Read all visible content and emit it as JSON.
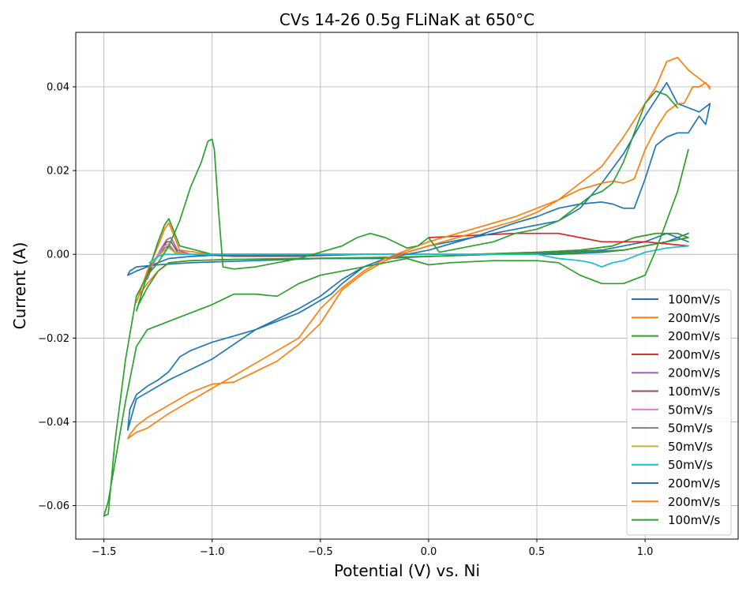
{
  "chart_data": {
    "type": "line",
    "title": "CVs 14-26 0.5g FLiNaK at 650°C",
    "xlabel": "Potential (V) vs. Ni",
    "ylabel": "Current (A)",
    "xlim": [
      -1.63,
      1.43
    ],
    "ylim": [
      -0.068,
      0.053
    ],
    "xticks": [
      -1.5,
      -1.0,
      -0.5,
      0.0,
      0.5,
      1.0
    ],
    "xtick_labels": [
      "−1.5",
      "−1.0",
      "−0.5",
      "0.0",
      "0.5",
      "1.0"
    ],
    "yticks": [
      -0.06,
      -0.04,
      -0.02,
      0.0,
      0.02,
      0.04
    ],
    "ytick_labels": [
      "−0.06",
      "−0.04",
      "−0.02",
      "0.00",
      "0.02",
      "0.04"
    ],
    "grid": true,
    "legend_position": "lower-right",
    "series": [
      {
        "name": "100mV/s",
        "color": "#1f77b4",
        "x": [
          1.2,
          1.15,
          1.1,
          1.0,
          0.9,
          0.8,
          0.6,
          0.3,
          0.0,
          -0.2,
          -0.5,
          -0.8,
          -1.1,
          -1.25,
          -1.35,
          -1.38,
          -1.39,
          -1.35,
          -1.3,
          -1.25,
          -1.2,
          -1.1,
          -0.9,
          -0.6,
          -0.4,
          -0.2,
          0.0,
          0.3,
          0.6,
          0.8,
          0.9,
          1.0,
          1.05,
          1.1,
          1.15,
          1.2
        ],
        "y": [
          0.005,
          0.004,
          0.003,
          0.002,
          0.001,
          0.0005,
          0.0,
          0.0,
          -0.0005,
          -0.001,
          -0.001,
          -0.0015,
          -0.002,
          -0.0025,
          -0.003,
          -0.004,
          -0.005,
          -0.004,
          -0.003,
          -0.002,
          -0.001,
          -0.0005,
          0.0,
          0.0,
          0.0,
          0.0,
          0.0,
          0.0,
          0.0005,
          0.001,
          0.002,
          0.003,
          0.004,
          0.005,
          0.004,
          0.003
        ]
      },
      {
        "name": "200mV/s",
        "color": "#ff7f0e",
        "x": [
          1.2,
          1.1,
          1.0,
          0.9,
          0.7,
          0.5,
          0.3,
          0.0,
          -0.3,
          -0.6,
          -0.9,
          -1.1,
          -1.2,
          -1.25,
          -1.3,
          -1.34,
          -1.35,
          -1.3,
          -1.25,
          -1.22,
          -1.2,
          -1.15,
          -1.0,
          -0.7,
          -0.4,
          -0.1,
          0.2,
          0.5,
          0.7,
          0.85,
          0.95,
          1.05,
          1.15,
          1.2
        ],
        "y": [
          0.004,
          0.003,
          0.002,
          0.001,
          0.0005,
          0.0,
          0.0,
          -0.0005,
          -0.0008,
          -0.001,
          -0.0012,
          -0.0015,
          -0.002,
          -0.004,
          -0.007,
          -0.01,
          -0.0115,
          -0.004,
          0.002,
          0.006,
          0.0075,
          0.001,
          0.0,
          0.0,
          0.0,
          0.0,
          0.0,
          0.0005,
          0.001,
          0.002,
          0.004,
          0.005,
          0.005,
          0.004
        ]
      },
      {
        "name": "200mV/s",
        "color": "#2ca02c",
        "x": [
          1.2,
          1.1,
          1.0,
          0.9,
          0.7,
          0.5,
          0.3,
          0.0,
          -0.3,
          -0.6,
          -0.9,
          -1.1,
          -1.2,
          -1.25,
          -1.3,
          -1.34,
          -1.35,
          -1.3,
          -1.25,
          -1.22,
          -1.2,
          -1.15,
          -1.0,
          -0.7,
          -0.4,
          -0.1,
          0.2,
          0.5,
          0.7,
          0.85,
          0.95,
          1.05,
          1.15,
          1.2
        ],
        "y": [
          0.004,
          0.003,
          0.002,
          0.001,
          0.0005,
          0.0,
          0.0,
          -0.0005,
          -0.0008,
          -0.001,
          -0.0012,
          -0.0015,
          -0.002,
          -0.004,
          -0.008,
          -0.012,
          -0.0135,
          -0.005,
          0.003,
          0.007,
          0.0085,
          0.002,
          0.0,
          0.0,
          0.0,
          0.0,
          0.0,
          0.0005,
          0.001,
          0.002,
          0.004,
          0.005,
          0.005,
          0.004
        ]
      },
      {
        "name": "200mV/s",
        "color": "#d62728",
        "x": [
          0.0,
          0.2,
          0.4,
          0.6,
          0.7,
          0.8,
          0.9,
          1.0,
          1.1,
          1.2
        ],
        "y": [
          0.004,
          0.0045,
          0.005,
          0.005,
          0.004,
          0.003,
          0.003,
          0.003,
          0.0025,
          0.002
        ]
      },
      {
        "name": "200mV/s",
        "color": "#9467bd",
        "x": [
          -1.3,
          -1.27,
          -1.24,
          -1.21,
          -1.19,
          -1.16,
          -1.1,
          -0.9,
          -0.6,
          -0.3,
          0.0
        ],
        "y": [
          -0.006,
          -0.002,
          0.001,
          0.0035,
          0.004,
          0.001,
          0.0,
          -0.0005,
          -0.0005,
          0.0,
          0.0
        ]
      },
      {
        "name": "100mV/s",
        "color": "#8c564b",
        "x": [
          -1.3,
          -1.27,
          -1.24,
          -1.21,
          -1.19,
          -1.16,
          -1.1,
          -0.9,
          -0.6,
          -0.3,
          0.0
        ],
        "y": [
          -0.005,
          -0.002,
          0.0005,
          0.003,
          0.003,
          0.0005,
          0.0,
          -0.0003,
          -0.0003,
          0.0,
          0.0
        ]
      },
      {
        "name": "50mV/s",
        "color": "#e377c2",
        "x": [
          -1.28,
          -1.25,
          -1.22,
          -1.2,
          -1.17,
          -1.1,
          -0.8,
          -0.4,
          0.0
        ],
        "y": [
          -0.003,
          0.0,
          0.002,
          0.0025,
          0.0005,
          0.0,
          0.0,
          0.0,
          0.0
        ]
      },
      {
        "name": "50mV/s",
        "color": "#7f7f7f",
        "x": [
          -1.28,
          -1.25,
          -1.22,
          -1.2,
          -1.17,
          -1.1,
          -0.8,
          -0.4,
          0.0
        ],
        "y": [
          -0.0025,
          -0.0005,
          0.0015,
          0.002,
          0.0003,
          0.0,
          0.0,
          0.0,
          0.0
        ]
      },
      {
        "name": "50mV/s",
        "color": "#bcbd22",
        "x": [
          -1.28,
          -1.25,
          -1.22,
          -1.2,
          -1.17,
          -1.1,
          -0.8,
          -0.4,
          0.0
        ],
        "y": [
          -0.002,
          -0.0005,
          0.001,
          0.0015,
          0.0003,
          0.0,
          0.0,
          0.0,
          0.0
        ]
      },
      {
        "name": "50mV/s",
        "color": "#17becf",
        "x": [
          -1.29,
          -1.25,
          -1.22,
          -1.2,
          -1.15,
          -1.0,
          -0.5,
          0.0,
          0.3,
          0.5,
          0.6,
          0.7,
          0.75,
          0.8,
          0.85,
          0.9,
          1.0,
          1.1,
          1.2
        ],
        "y": [
          -0.002,
          -0.0005,
          0.0,
          0.0,
          0.0,
          0.0,
          0.0,
          0.0,
          0.0,
          0.0,
          -0.001,
          -0.0015,
          -0.002,
          -0.003,
          -0.002,
          -0.0015,
          0.0005,
          0.0015,
          0.002
        ]
      },
      {
        "name": "200mV/s",
        "color": "#1f77b4",
        "x": [
          1.3,
          1.28,
          1.25,
          1.2,
          1.15,
          1.1,
          1.05,
          1.0,
          0.95,
          0.9,
          0.85,
          0.8,
          0.7,
          0.6,
          0.5,
          0.4,
          0.2,
          0.0,
          -0.1,
          -0.2,
          -0.3,
          -0.4,
          -0.45,
          -0.5,
          -0.6,
          -0.7,
          -0.8,
          -0.9,
          -1.0,
          -1.1,
          -1.15,
          -1.2,
          -1.25,
          -1.3,
          -1.35,
          -1.38,
          -1.39,
          -1.35,
          -1.3,
          -1.2,
          -1.0,
          -0.8,
          -0.6,
          -0.5,
          -0.4,
          -0.3,
          -0.2,
          0.0,
          0.2,
          0.4,
          0.6,
          0.7,
          0.8,
          0.9,
          1.0,
          1.05,
          1.1,
          1.15,
          1.2,
          1.25,
          1.3
        ],
        "y": [
          0.036,
          0.031,
          0.033,
          0.029,
          0.029,
          0.028,
          0.026,
          0.018,
          0.011,
          0.011,
          0.012,
          0.0125,
          0.012,
          0.011,
          0.009,
          0.0075,
          0.004,
          0.001,
          0.0,
          -0.001,
          -0.003,
          -0.007,
          -0.0095,
          -0.011,
          -0.014,
          -0.016,
          -0.018,
          -0.0195,
          -0.021,
          -0.023,
          -0.0245,
          -0.028,
          -0.03,
          -0.0315,
          -0.0335,
          -0.037,
          -0.042,
          -0.0345,
          -0.033,
          -0.03,
          -0.025,
          -0.018,
          -0.013,
          -0.01,
          -0.006,
          -0.003,
          -0.001,
          0.002,
          0.004,
          0.006,
          0.008,
          0.011,
          0.017,
          0.024,
          0.033,
          0.037,
          0.041,
          0.036,
          0.035,
          0.034,
          0.036
        ]
      },
      {
        "name": "200mV/s",
        "color": "#ff7f0e",
        "x": [
          1.3,
          1.28,
          1.25,
          1.22,
          1.2,
          1.18,
          1.15,
          1.1,
          1.05,
          1.0,
          0.95,
          0.9,
          0.85,
          0.8,
          0.7,
          0.6,
          0.5,
          0.4,
          0.2,
          0.0,
          -0.1,
          -0.2,
          -0.3,
          -0.4,
          -0.5,
          -0.6,
          -0.7,
          -0.8,
          -0.9,
          -1.0,
          -1.1,
          -1.2,
          -1.3,
          -1.35,
          -1.38,
          -1.39,
          -1.35,
          -1.3,
          -1.2,
          -1.0,
          -0.8,
          -0.6,
          -0.5,
          -0.4,
          -0.3,
          -0.2,
          0.0,
          0.2,
          0.4,
          0.6,
          0.7,
          0.8,
          0.9,
          1.0,
          1.05,
          1.1,
          1.15,
          1.2,
          1.25,
          1.3
        ],
        "y": [
          0.0395,
          0.041,
          0.04,
          0.04,
          0.038,
          0.036,
          0.036,
          0.034,
          0.03,
          0.025,
          0.018,
          0.017,
          0.0175,
          0.017,
          0.0155,
          0.013,
          0.01,
          0.008,
          0.005,
          0.002,
          0.0005,
          -0.0015,
          -0.0045,
          -0.0085,
          -0.0165,
          -0.0215,
          -0.0255,
          -0.028,
          -0.0305,
          -0.031,
          -0.033,
          -0.036,
          -0.039,
          -0.041,
          -0.043,
          -0.044,
          -0.0425,
          -0.0415,
          -0.038,
          -0.032,
          -0.026,
          -0.02,
          -0.013,
          -0.008,
          -0.004,
          -0.001,
          0.003,
          0.006,
          0.009,
          0.013,
          0.017,
          0.021,
          0.028,
          0.036,
          0.04,
          0.046,
          0.047,
          0.044,
          0.042,
          0.04
        ]
      },
      {
        "name": "100mV/s",
        "color": "#2ca02c",
        "x": [
          1.15,
          1.1,
          1.05,
          1.0,
          0.95,
          0.9,
          0.85,
          0.8,
          0.75,
          0.7,
          0.6,
          0.5,
          0.4,
          0.3,
          0.2,
          0.1,
          0.05,
          0.0,
          -0.05,
          -0.1,
          -0.2,
          -0.27,
          -0.33,
          -0.4,
          -0.5,
          -0.6,
          -0.7,
          -0.8,
          -0.9,
          -0.95,
          -0.97,
          -0.99,
          -1.0,
          -1.02,
          -1.05,
          -1.1,
          -1.15,
          -1.2,
          -1.25,
          -1.3,
          -1.35,
          -1.4,
          -1.45,
          -1.48,
          -1.5,
          -1.48,
          -1.45,
          -1.4,
          -1.35,
          -1.3,
          -1.2,
          -1.1,
          -1.0,
          -0.9,
          -0.8,
          -0.7,
          -0.6,
          -0.5,
          -0.4,
          -0.3,
          -0.2,
          -0.1,
          0.0,
          0.1,
          0.3,
          0.5,
          0.6,
          0.7,
          0.8,
          0.9,
          1.0,
          1.05,
          1.1,
          1.15,
          1.2
        ],
        "y": [
          0.035,
          0.038,
          0.039,
          0.036,
          0.029,
          0.022,
          0.017,
          0.015,
          0.014,
          0.012,
          0.008,
          0.006,
          0.005,
          0.003,
          0.002,
          0.001,
          0.0005,
          0.004,
          0.002,
          0.0015,
          0.004,
          0.005,
          0.004,
          0.002,
          0.0005,
          -0.001,
          -0.002,
          -0.003,
          -0.0035,
          -0.003,
          0.01,
          0.025,
          0.0275,
          0.027,
          0.022,
          0.016,
          0.008,
          0.002,
          -0.002,
          -0.005,
          -0.01,
          -0.025,
          -0.045,
          -0.062,
          -0.0625,
          -0.059,
          -0.05,
          -0.035,
          -0.022,
          -0.018,
          -0.016,
          -0.014,
          -0.012,
          -0.0095,
          -0.0095,
          -0.01,
          -0.007,
          -0.005,
          -0.004,
          -0.003,
          -0.002,
          -0.001,
          -0.0025,
          -0.002,
          -0.0015,
          -0.0015,
          -0.002,
          -0.005,
          -0.007,
          -0.007,
          -0.005,
          0.001,
          0.008,
          0.015,
          0.025
        ]
      }
    ]
  }
}
